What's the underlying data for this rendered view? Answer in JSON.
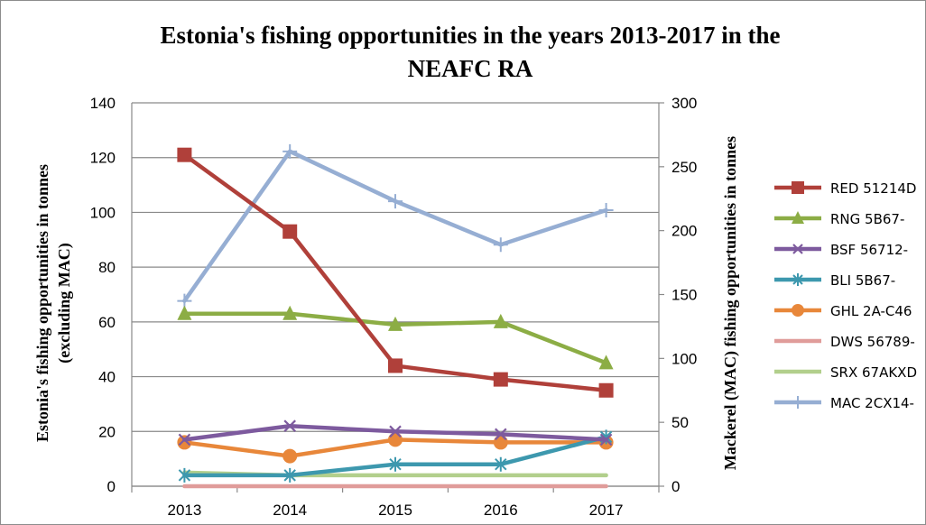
{
  "chart_data": {
    "type": "line",
    "title_line1": "Estonia's  fishing opportunities  in the years 2013-2017 in the",
    "title_line2": "NEAFC RA",
    "ylabel_left_line1": "Estonia's fishing opportunities in tonnes",
    "ylabel_left_line2": "(excluding MAC)",
    "ylabel_right": "Mackerel (MAC) fishing opportunities in tonnes",
    "categories": [
      "2013",
      "2014",
      "2015",
      "2016",
      "2017"
    ],
    "ylim_left": [
      0,
      140
    ],
    "yticks_left": [
      0,
      20,
      40,
      60,
      80,
      100,
      120,
      140
    ],
    "ylim_right": [
      0,
      300
    ],
    "yticks_right": [
      0,
      50,
      100,
      150,
      200,
      250,
      300
    ],
    "grid": true,
    "legend_position": "right",
    "series": [
      {
        "name": "RED 51214D",
        "values": [
          121,
          93,
          44,
          39,
          35
        ],
        "axis": "left",
        "color": "#b0403a",
        "marker": "square"
      },
      {
        "name": "RNG 5B67-",
        "values": [
          63,
          63,
          59,
          60,
          45
        ],
        "axis": "left",
        "color": "#8cad45",
        "marker": "triangle"
      },
      {
        "name": "BSF 56712-",
        "values": [
          17,
          22,
          20,
          19,
          17
        ],
        "axis": "left",
        "color": "#7d5a9e",
        "marker": "x"
      },
      {
        "name": "BLI 5B67-",
        "values": [
          4,
          4,
          8,
          8,
          18
        ],
        "axis": "left",
        "color": "#3d98ae",
        "marker": "asterisk"
      },
      {
        "name": "GHL 2A-C46",
        "values": [
          16,
          11,
          17,
          16,
          16
        ],
        "axis": "left",
        "color": "#e8873a",
        "marker": "circle"
      },
      {
        "name": "DWS 56789-",
        "values": [
          0,
          0,
          0,
          0,
          0
        ],
        "axis": "left",
        "color": "#e09c9a",
        "marker": "none"
      },
      {
        "name": "SRX 67AKXD",
        "values": [
          5,
          4,
          4,
          4,
          4
        ],
        "axis": "left",
        "color": "#b2cf8c",
        "marker": "none"
      },
      {
        "name": "MAC 2CX14-",
        "values": [
          145,
          262,
          223,
          189,
          216
        ],
        "axis": "right",
        "color": "#96aed3",
        "marker": "plus"
      }
    ]
  }
}
